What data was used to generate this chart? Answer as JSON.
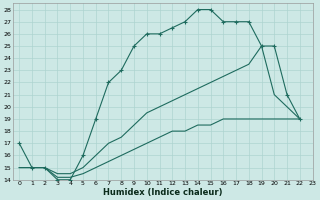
{
  "xlabel": "Humidex (Indice chaleur)",
  "bg_color": "#cde8e5",
  "grid_color": "#aed4d0",
  "line_color": "#1e6b5e",
  "xlim": [
    -0.5,
    23
  ],
  "ylim": [
    14,
    28.5
  ],
  "xticks": [
    0,
    1,
    2,
    3,
    4,
    5,
    6,
    7,
    8,
    9,
    10,
    11,
    12,
    13,
    14,
    15,
    16,
    17,
    18,
    19,
    20,
    21,
    22,
    23
  ],
  "yticks": [
    14,
    15,
    16,
    17,
    18,
    19,
    20,
    21,
    22,
    23,
    24,
    25,
    26,
    27,
    28
  ],
  "line1_x": [
    0,
    1,
    2,
    3,
    4,
    5,
    6,
    7,
    8,
    9,
    10,
    11,
    12,
    13,
    14,
    15,
    16,
    17,
    18,
    19,
    20,
    21,
    22
  ],
  "line1_y": [
    17,
    15,
    15,
    14,
    14,
    16,
    19,
    22,
    23,
    25,
    26,
    26,
    26.5,
    27,
    28,
    28,
    27,
    27,
    27,
    25,
    25,
    21,
    19
  ],
  "line2_x": [
    0,
    1,
    2,
    3,
    4,
    5,
    6,
    7,
    8,
    9,
    10,
    11,
    12,
    13,
    14,
    15,
    16,
    17,
    18,
    19,
    20,
    21,
    22
  ],
  "line2_y": [
    15,
    15,
    15,
    14.5,
    14.5,
    15,
    16,
    17,
    17.5,
    18.5,
    19.5,
    20,
    20.5,
    21,
    21.5,
    22,
    22.5,
    23,
    23.5,
    25,
    21,
    20,
    19
  ],
  "line3_x": [
    0,
    1,
    2,
    3,
    4,
    5,
    6,
    7,
    8,
    9,
    10,
    11,
    12,
    13,
    14,
    15,
    16,
    17,
    18,
    19,
    20,
    21,
    22
  ],
  "line3_y": [
    15,
    15,
    15,
    14.2,
    14.2,
    14.5,
    15,
    15.5,
    16,
    16.5,
    17,
    17.5,
    18,
    18,
    18.5,
    18.5,
    19,
    19,
    19,
    19,
    19,
    19,
    19
  ]
}
